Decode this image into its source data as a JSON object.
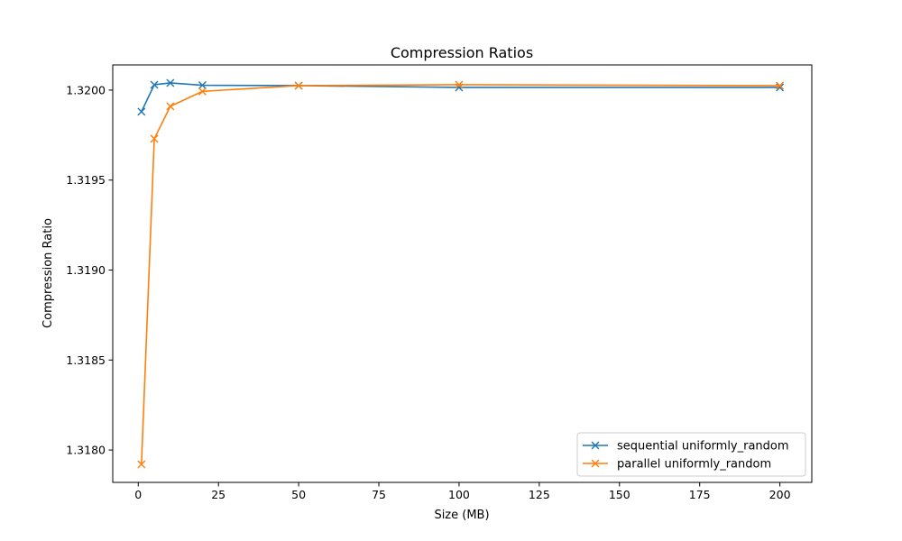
{
  "chart_data": {
    "type": "line",
    "title": "Compression Ratios",
    "xlabel": "Size (MB)",
    "ylabel": "Compression Ratio",
    "xlim": [
      -7.95,
      209.95
    ],
    "ylim": [
      1.31782,
      1.32014
    ],
    "xticks": [
      0,
      25,
      50,
      75,
      100,
      125,
      150,
      175,
      200
    ],
    "xtick_labels": [
      "0",
      "25",
      "50",
      "75",
      "100",
      "125",
      "150",
      "175",
      "200"
    ],
    "yticks": [
      1.318,
      1.3185,
      1.319,
      1.3195,
      1.32
    ],
    "ytick_labels": [
      "1.3180",
      "1.3185",
      "1.3190",
      "1.3195",
      "1.3200"
    ],
    "grid": false,
    "legend_position": "lower-right",
    "series": [
      {
        "name": "sequential uniformly_random",
        "color": "#1f77b4",
        "marker": "x",
        "x": [
          1,
          5,
          10,
          20,
          50,
          100,
          200
        ],
        "y": [
          1.31988,
          1.32003,
          1.32004,
          1.320027,
          1.320025,
          1.320015,
          1.320015
        ]
      },
      {
        "name": "parallel uniformly_random",
        "color": "#ff7f0e",
        "marker": "x",
        "x": [
          1,
          5,
          10,
          20,
          50,
          100,
          200
        ],
        "y": [
          1.31792,
          1.31973,
          1.31991,
          1.319993,
          1.320025,
          1.32003,
          1.320025
        ]
      }
    ]
  }
}
